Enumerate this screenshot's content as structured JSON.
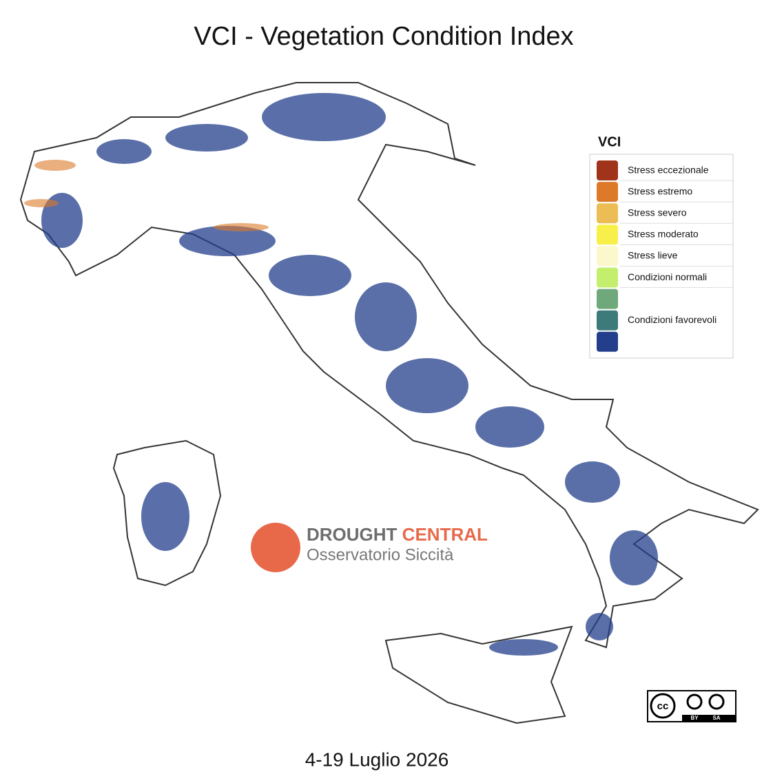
{
  "title": "VCI - Vegetation Condition Index",
  "legend": {
    "title": "VCI",
    "classes": [
      {
        "label": "Stress eccezionale",
        "colors": [
          "#a0341b"
        ]
      },
      {
        "label": "Stress estremo",
        "colors": [
          "#dc7a2a"
        ]
      },
      {
        "label": "Stress severo",
        "colors": [
          "#ecbd55"
        ]
      },
      {
        "label": "Stress moderato",
        "colors": [
          "#f7ef4a"
        ]
      },
      {
        "label": "Stress lieve",
        "colors": [
          "#fbf8cc"
        ]
      },
      {
        "label": "Condizioni normali",
        "colors": [
          "#c4ef6e"
        ]
      },
      {
        "label": "Condizioni favorevoli",
        "colors": [
          "#6fa87b",
          "#3d7a7a",
          "#233f8c"
        ]
      }
    ]
  },
  "logo": {
    "word1": "DROUGHT",
    "word2": "CENTRAL",
    "subtitle": "Osservatorio Siccità"
  },
  "license": {
    "cc": "cc",
    "by": "BY",
    "sa": "SA"
  },
  "date": "4-19 Luglio 2026"
}
